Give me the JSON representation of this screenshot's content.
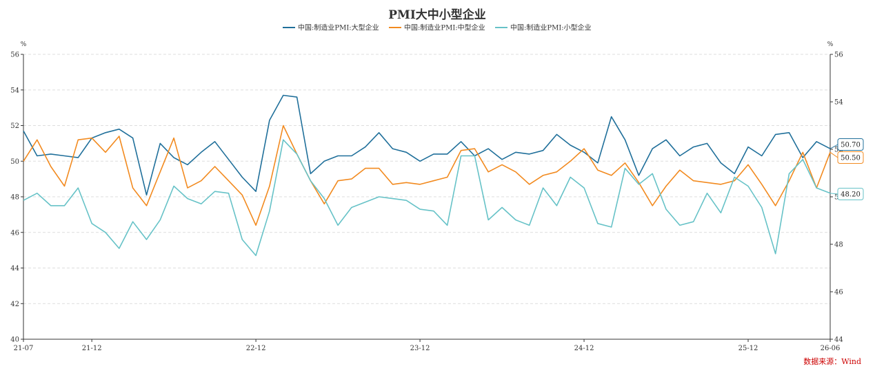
{
  "chart_data": {
    "type": "line",
    "title": "PMI大中小型企业",
    "source": "数据来源：Wind",
    "left_axis": {
      "unit": "%",
      "ylim": [
        40,
        56
      ],
      "ticks": [
        40,
        42,
        44,
        46,
        48,
        50,
        52,
        54,
        56
      ]
    },
    "right_axis": {
      "unit": "%",
      "ylim": [
        44,
        56
      ],
      "ticks": [
        44,
        46,
        48,
        50,
        52,
        54,
        56
      ]
    },
    "x_tick_labels": [
      "21-07",
      "21-12",
      "22-12",
      "23-12",
      "24-12",
      "25-12",
      "26-06"
    ],
    "x": [
      "21-07",
      "21-08",
      "21-09",
      "21-10",
      "21-11",
      "21-12",
      "22-01",
      "22-02",
      "22-03",
      "22-04",
      "22-05",
      "22-06",
      "22-07",
      "22-08",
      "22-09",
      "22-10",
      "22-11",
      "22-12",
      "23-01",
      "23-02",
      "23-03",
      "23-04",
      "23-05",
      "23-06",
      "23-07",
      "23-08",
      "23-09",
      "23-10",
      "23-11",
      "23-12",
      "24-01",
      "24-02",
      "24-03",
      "24-04",
      "24-05",
      "24-06",
      "24-07",
      "24-08",
      "24-09",
      "24-10",
      "24-11",
      "24-12",
      "25-01",
      "25-02",
      "25-03",
      "25-04",
      "25-05",
      "25-06",
      "25-07",
      "25-08",
      "25-09",
      "25-10",
      "25-11",
      "25-12",
      "26-01",
      "26-02",
      "26-03",
      "26-04",
      "26-05",
      "26-06"
    ],
    "legend_position": "top",
    "grid": true,
    "series": [
      {
        "name": "中国:制造业PMI:大型企业",
        "color": "#1f6f9a",
        "axis": "left",
        "end_label": "50.70",
        "values": [
          51.7,
          50.3,
          50.4,
          50.3,
          50.2,
          51.3,
          51.6,
          51.8,
          51.3,
          48.1,
          51.0,
          50.2,
          49.8,
          50.5,
          51.1,
          50.1,
          49.1,
          48.3,
          52.3,
          53.7,
          53.6,
          49.3,
          50.0,
          50.3,
          50.3,
          50.8,
          51.6,
          50.7,
          50.5,
          50.0,
          50.4,
          50.4,
          51.1,
          50.3,
          50.7,
          50.1,
          50.5,
          50.4,
          50.6,
          51.5,
          50.9,
          50.5,
          49.9,
          52.5,
          51.2,
          49.2,
          50.7,
          51.2,
          50.3,
          50.8,
          51.0,
          49.9,
          49.3,
          50.8,
          50.3,
          51.5,
          51.6,
          50.2,
          51.1,
          50.7
        ]
      },
      {
        "name": "中国:制造业PMI:中型企业",
        "color": "#f28a1f",
        "axis": "left",
        "end_label": "50.50",
        "values": [
          50.0,
          51.2,
          49.7,
          48.6,
          51.2,
          51.3,
          50.5,
          51.4,
          48.5,
          47.5,
          49.4,
          51.3,
          48.5,
          48.9,
          49.7,
          48.9,
          48.1,
          46.4,
          48.6,
          52.0,
          50.4,
          48.9,
          47.6,
          48.9,
          49.0,
          49.6,
          49.6,
          48.7,
          48.8,
          48.7,
          48.9,
          49.1,
          50.6,
          50.7,
          49.4,
          49.8,
          49.4,
          48.7,
          49.2,
          49.4,
          50.0,
          50.7,
          49.5,
          49.2,
          49.9,
          48.8,
          47.5,
          48.6,
          49.5,
          48.9,
          48.8,
          48.7,
          48.9,
          49.8,
          48.7,
          47.5,
          48.9,
          50.5,
          48.5,
          50.5
        ]
      },
      {
        "name": "中国:制造业PMI:小型企业",
        "color": "#66c2c7",
        "axis": "left",
        "end_label": "48.20",
        "values": [
          47.8,
          48.2,
          47.5,
          47.5,
          48.5,
          46.5,
          46.0,
          45.1,
          46.6,
          45.6,
          46.7,
          48.6,
          47.9,
          47.6,
          48.3,
          48.2,
          45.6,
          44.7,
          47.2,
          51.2,
          50.4,
          48.9,
          47.9,
          46.4,
          47.4,
          47.7,
          48.0,
          47.9,
          47.8,
          47.3,
          47.2,
          46.4,
          50.3,
          50.3,
          46.7,
          47.4,
          46.7,
          46.4,
          48.5,
          47.5,
          49.1,
          48.5,
          46.5,
          46.3,
          49.6,
          48.7,
          49.3,
          47.3,
          46.4,
          46.6,
          48.2,
          47.1,
          49.1,
          48.6,
          47.4,
          44.8,
          49.3,
          50.1,
          48.5,
          48.2
        ]
      }
    ]
  }
}
